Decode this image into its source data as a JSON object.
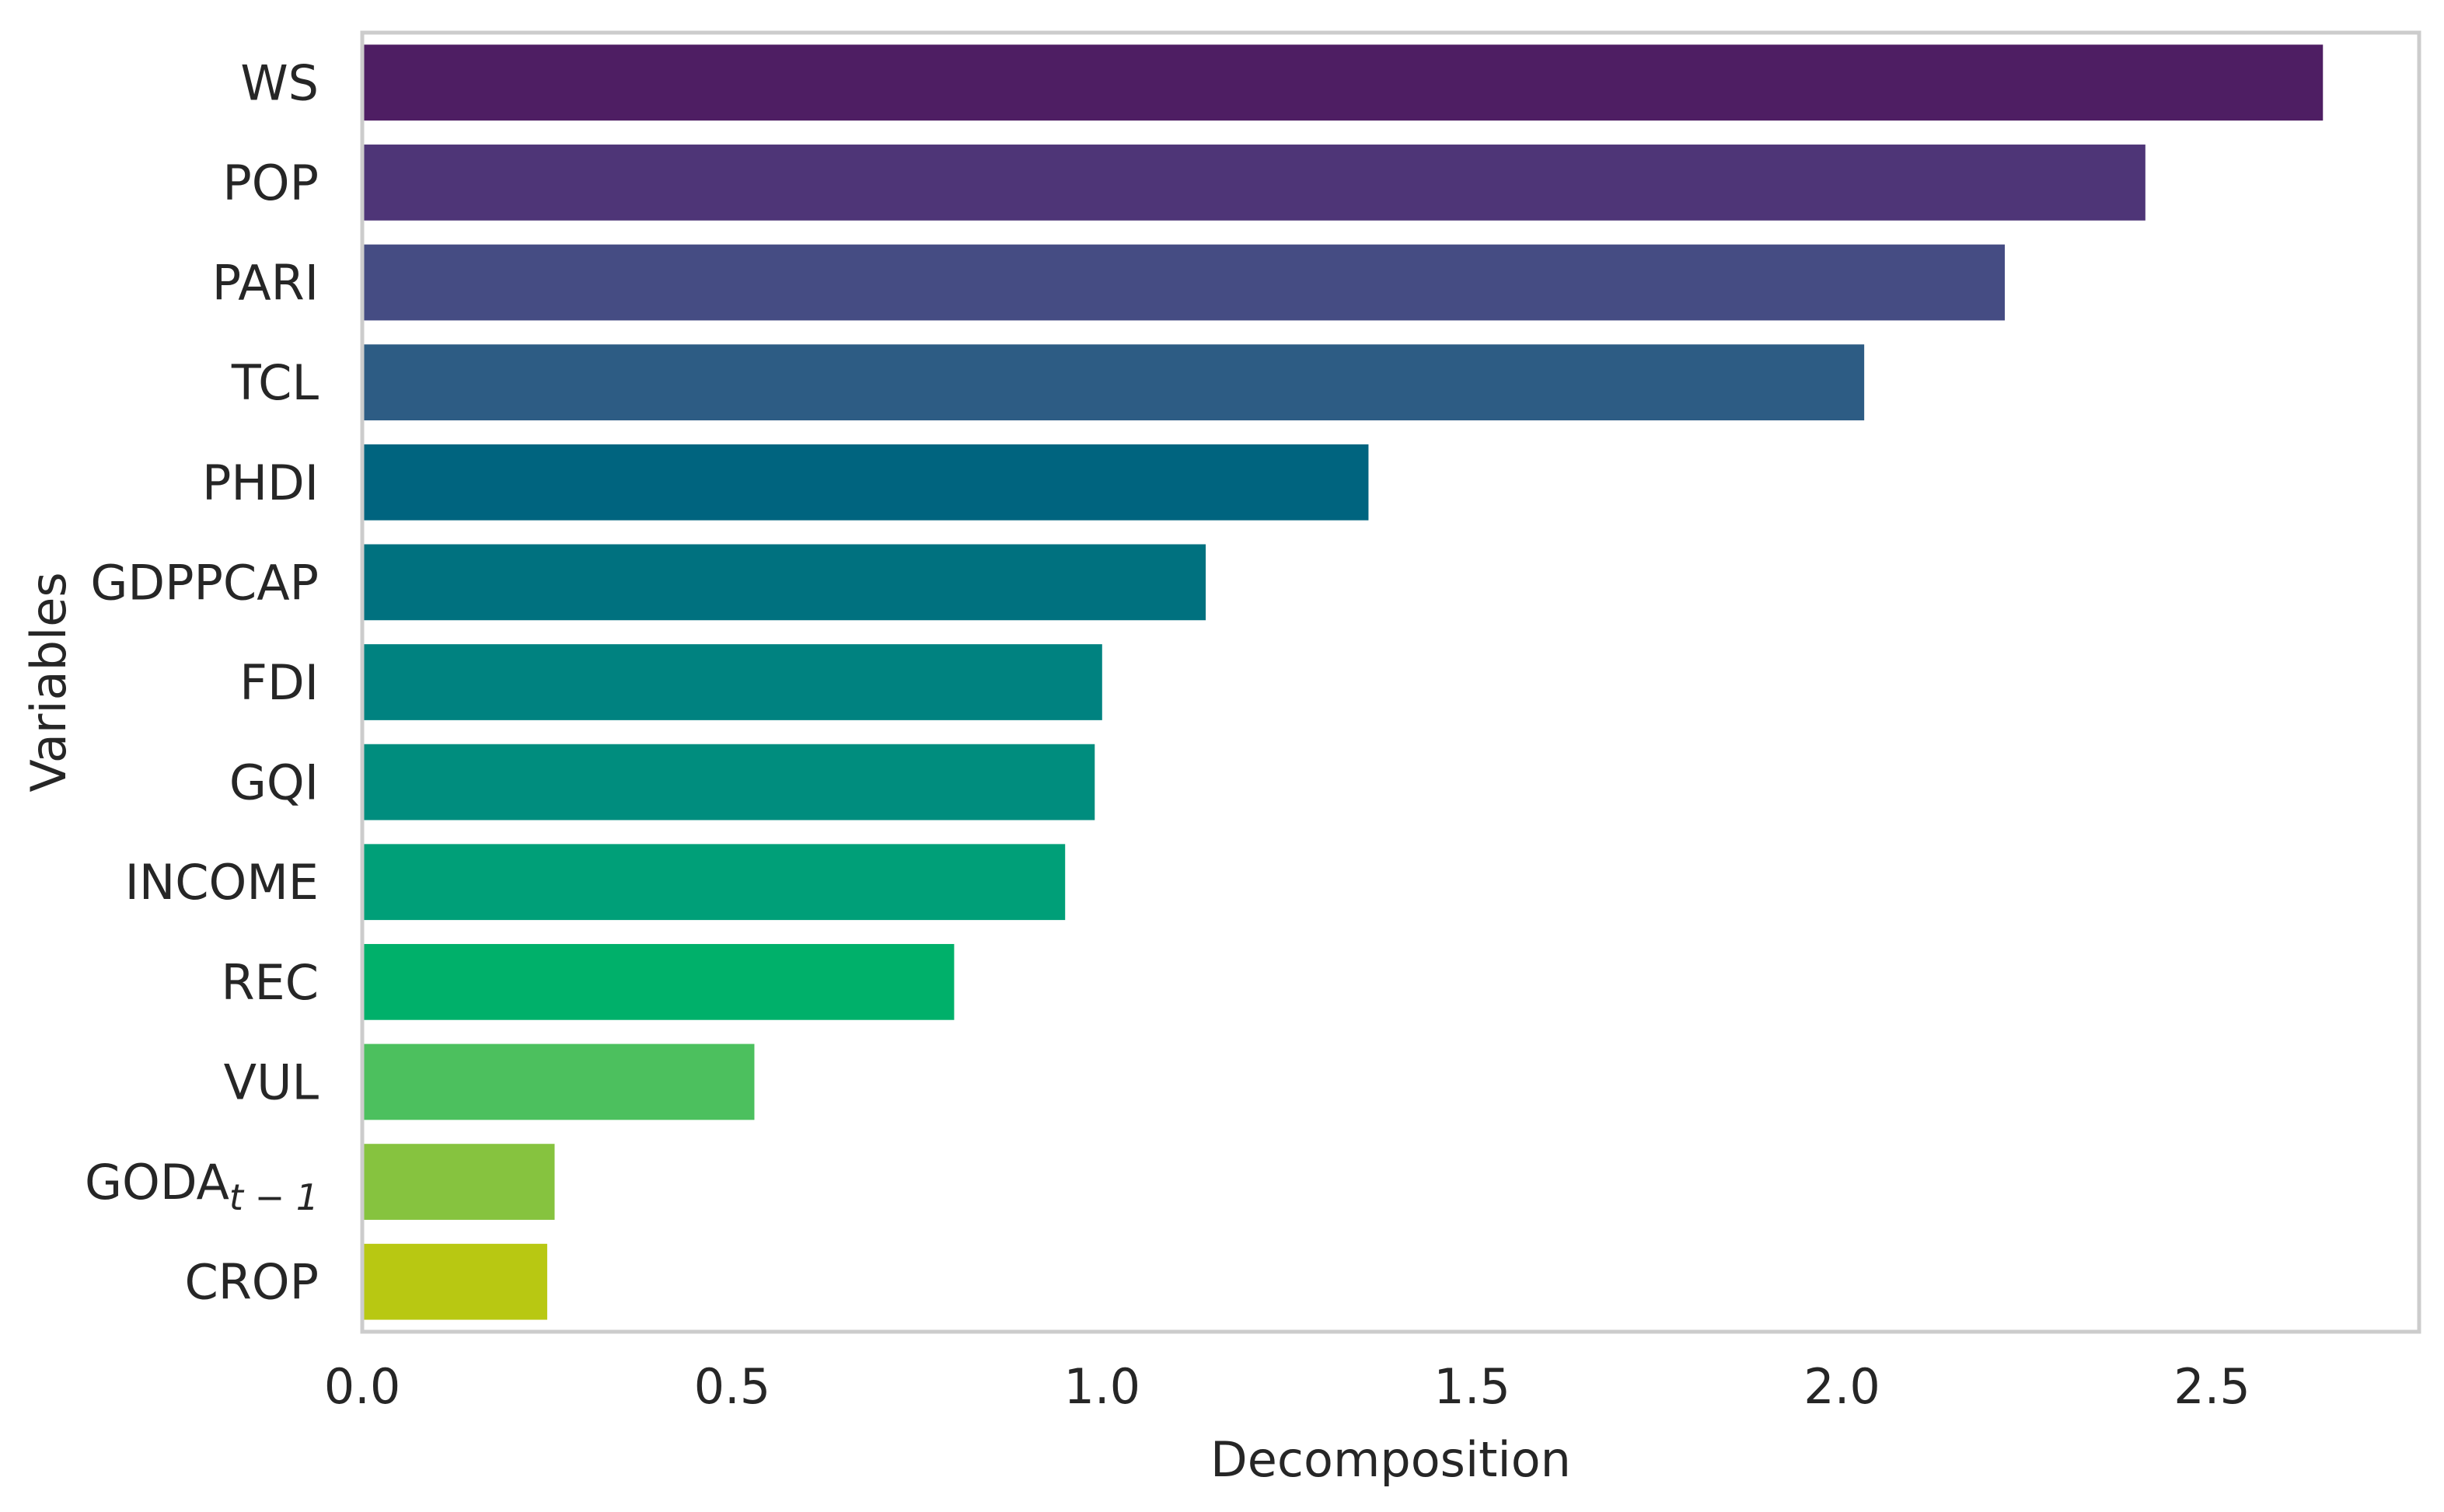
{
  "chart_data": {
    "type": "bar",
    "orientation": "horizontal",
    "title": "",
    "xlabel": "Decomposition",
    "ylabel": "Variables",
    "xlim": [
      0,
      2.78
    ],
    "xticks": [
      "0.0",
      "0.5",
      "1.0",
      "1.5",
      "2.0",
      "2.5"
    ],
    "grid": false,
    "legend": "none",
    "categories": [
      {
        "label": "WS",
        "value": 2.65,
        "color": "#4e1e63"
      },
      {
        "label": "POP",
        "value": 2.41,
        "color": "#4e3577"
      },
      {
        "label": "PARI",
        "value": 2.22,
        "color": "#454c83"
      },
      {
        "label": "TCL",
        "value": 2.03,
        "color": "#2d5c84"
      },
      {
        "label": "PHDI",
        "value": 1.36,
        "color": "#00647f"
      },
      {
        "label": "GDPPCAP",
        "value": 1.14,
        "color": "#00717f"
      },
      {
        "label": "FDI",
        "value": 1.0,
        "color": "#008280"
      },
      {
        "label": "GQI",
        "value": 0.99,
        "color": "#008d7e"
      },
      {
        "label": "INCOME",
        "value": 0.95,
        "color": "#009f78"
      },
      {
        "label": "REC",
        "value": 0.8,
        "color": "#00b06a"
      },
      {
        "label": "VUL",
        "value": 0.53,
        "color": "#4cc05e"
      },
      {
        "label": "GODA",
        "sub": "t − 1",
        "value": 0.26,
        "color": "#86c33f"
      },
      {
        "label": "CROP",
        "value": 0.25,
        "color": "#b8c812"
      }
    ]
  }
}
